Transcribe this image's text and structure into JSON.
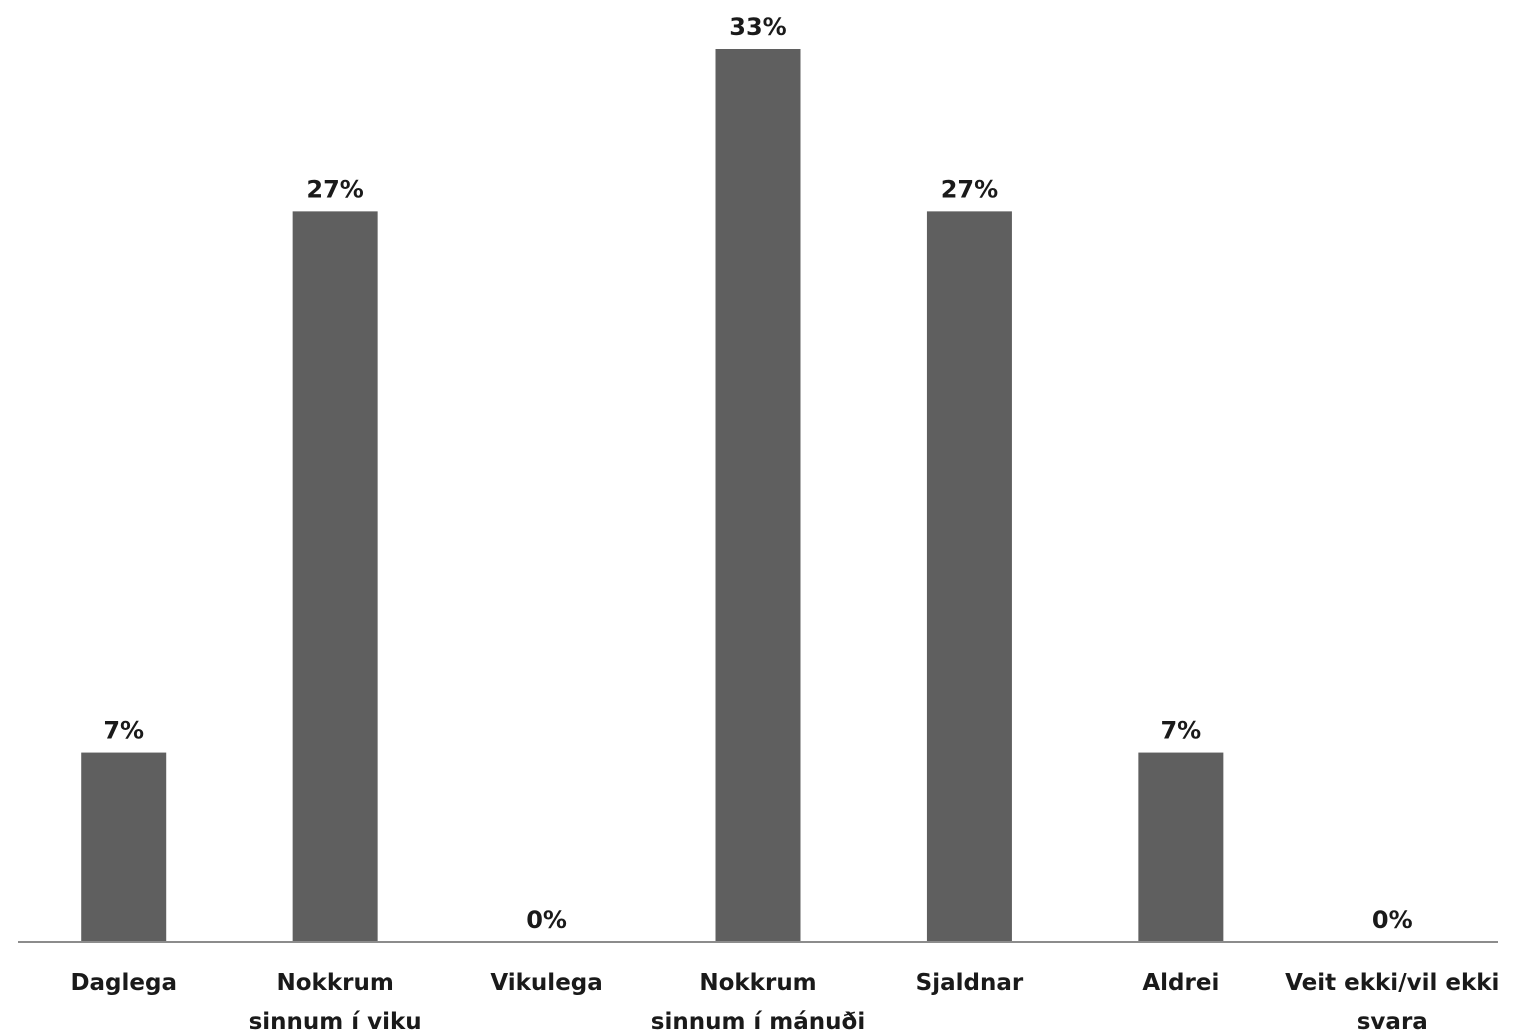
{
  "chart_data": {
    "type": "bar",
    "categories": [
      [
        "Daglega"
      ],
      [
        "Nokkrum",
        "sinnum í viku"
      ],
      [
        "Vikulega"
      ],
      [
        "Nokkrum",
        "sinnum í mánuði"
      ],
      [
        "Sjaldnar"
      ],
      [
        "Aldrei"
      ],
      [
        "Veit ekki/vil ekki",
        "svara"
      ]
    ],
    "values": [
      7,
      27,
      0,
      33,
      27,
      7,
      0
    ],
    "data_labels": [
      "7%",
      "27%",
      "0%",
      "33%",
      "27%",
      "7%",
      "0%"
    ],
    "ylim": [
      0,
      33
    ],
    "grid": false,
    "legend": "none",
    "bar_color": "#5f5f5f",
    "axis_color": "#8c8c8c"
  }
}
